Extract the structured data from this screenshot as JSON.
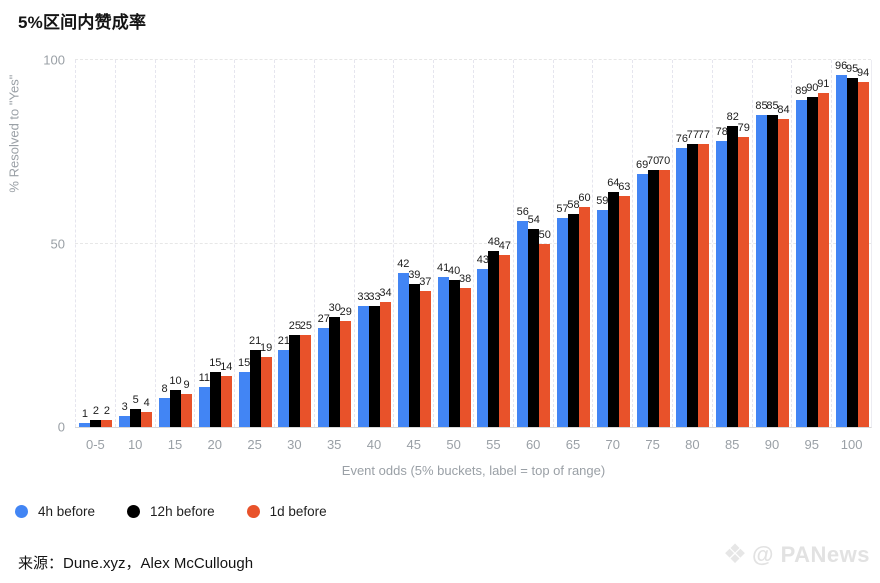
{
  "title": "5%区间内赞成率",
  "chart_data": {
    "type": "bar",
    "title": "5%区间内赞成率",
    "xlabel": "Event odds (5% buckets, label = top of range)",
    "ylabel": "% Resolved to \"Yes\"",
    "ylim": [
      0,
      100
    ],
    "yticks": [
      0,
      50,
      100
    ],
    "grid": "horizontal dashed at 50 and 100, vertical category separators",
    "legend_position": "bottom-left",
    "bar_value_labels": true,
    "categories": [
      "0-5",
      "10",
      "15",
      "20",
      "25",
      "30",
      "35",
      "40",
      "45",
      "50",
      "55",
      "60",
      "65",
      "70",
      "75",
      "80",
      "85",
      "90",
      "95",
      "100"
    ],
    "series": [
      {
        "name": "4h before",
        "color": "#4285F4",
        "values": [
          1,
          3,
          8,
          11,
          15,
          21,
          27,
          33,
          42,
          41,
          43,
          56,
          57,
          59,
          69,
          76,
          78,
          85,
          89,
          96
        ]
      },
      {
        "name": "12h before",
        "color": "#000000",
        "values": [
          2,
          5,
          10,
          15,
          21,
          25,
          30,
          33,
          39,
          40,
          48,
          54,
          58,
          64,
          70,
          77,
          82,
          85,
          90,
          95
        ]
      },
      {
        "name": "1d before",
        "color": "#E8522A",
        "values": [
          2,
          4,
          9,
          14,
          19,
          25,
          29,
          34,
          37,
          38,
          47,
          50,
          60,
          63,
          70,
          77,
          79,
          84,
          91,
          94
        ]
      }
    ]
  },
  "footer": {
    "source_text": "来源：Dune.xyz，Alex McCullough",
    "watermark_text": "@ PANews"
  }
}
